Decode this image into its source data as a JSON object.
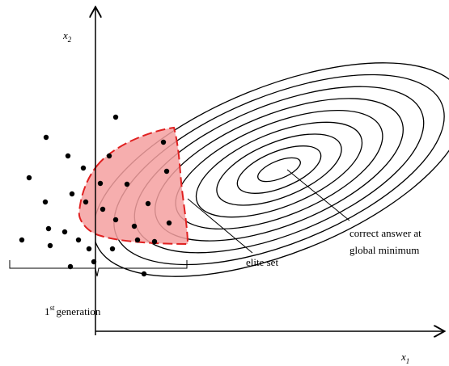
{
  "axes": {
    "vertical": {
      "symbol": "x",
      "subscript": "2"
    },
    "horizontal": {
      "symbol": "x",
      "subscript": "1"
    }
  },
  "annotations": {
    "global_minimum": [
      "correct answer at",
      "global minimum"
    ],
    "elite_set": "elite set",
    "generation": {
      "ordinal": "1",
      "suffix": "st",
      "text": "generation"
    }
  }
}
